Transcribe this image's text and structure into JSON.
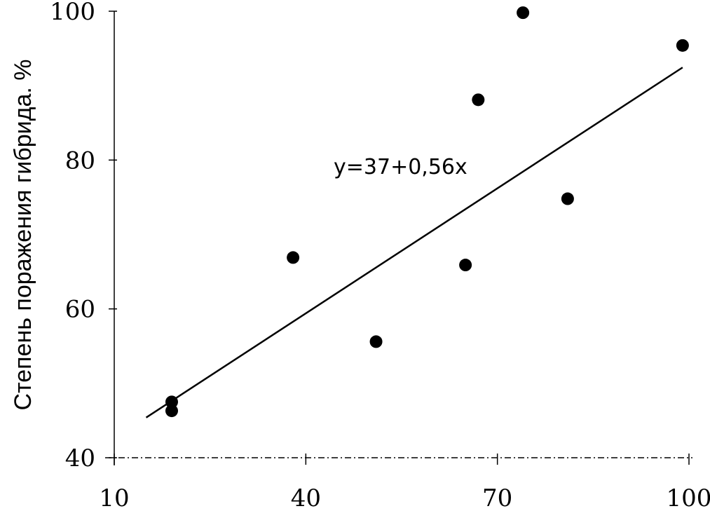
{
  "chart_data": {
    "type": "scatter",
    "title": "",
    "xlabel": "",
    "ylabel": "Степень поражения гибрида. %",
    "xlim": [
      10,
      100
    ],
    "ylim": [
      40,
      100
    ],
    "x_ticks": [
      "10",
      "40",
      "70",
      "100"
    ],
    "y_ticks": [
      "40",
      "60",
      "80",
      "100"
    ],
    "points": [
      {
        "x": 19,
        "y": 47.5
      },
      {
        "x": 19,
        "y": 46.3
      },
      {
        "x": 38,
        "y": 66.9
      },
      {
        "x": 51,
        "y": 55.6
      },
      {
        "x": 65,
        "y": 65.9
      },
      {
        "x": 67,
        "y": 88.1
      },
      {
        "x": 74,
        "y": 99.8
      },
      {
        "x": 81,
        "y": 74.8
      },
      {
        "x": 99,
        "y": 95.4
      }
    ],
    "trendline": {
      "intercept": 37,
      "slope": 0.56,
      "x_range": [
        15,
        99
      ]
    },
    "annotation": "y=37+0,56x",
    "grid": false,
    "colors": {
      "marker": "#000000",
      "line": "#000000"
    }
  }
}
